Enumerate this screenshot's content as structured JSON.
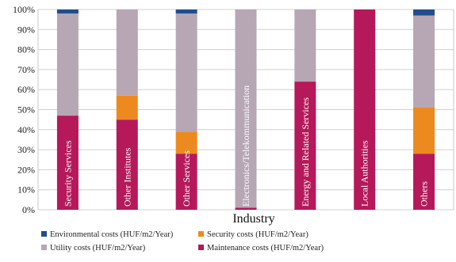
{
  "chart_data": {
    "type": "bar",
    "stacked": true,
    "percent": true,
    "xlabel": "Industry",
    "ylabel": "",
    "ylim": [
      0,
      100
    ],
    "y_ticks": [
      "0%",
      "10%",
      "20%",
      "30%",
      "40%",
      "50%",
      "60%",
      "70%",
      "80%",
      "90%",
      "100%"
    ],
    "grid": true,
    "legend_position": "bottom",
    "categories": [
      "Security Services",
      "Other Institutes",
      "Other Services",
      "Electronics/Telekommunication",
      "Energy and Related Services",
      "Local Authorities",
      "Others"
    ],
    "series": [
      {
        "name": "Maintenance costs (HUF/m2/Year)",
        "color": "#b5195a",
        "values": [
          47,
          45,
          28,
          1,
          64,
          100,
          28
        ]
      },
      {
        "name": "Security costs (HUF/m2/Year)",
        "color": "#ec8a1f",
        "values": [
          0,
          12,
          11,
          0,
          0,
          0,
          23
        ]
      },
      {
        "name": "Utility costs (HUF/m2/Year)",
        "color": "#b7a6b3",
        "values": [
          51,
          43,
          59,
          99,
          36,
          0,
          46
        ]
      },
      {
        "name": "Environmental costs (HUF/m2/Year)",
        "color": "#1f4e8c",
        "values": [
          2,
          0,
          2,
          0,
          0,
          0,
          3
        ]
      }
    ],
    "legend_order": [
      3,
      1,
      2,
      0
    ]
  }
}
